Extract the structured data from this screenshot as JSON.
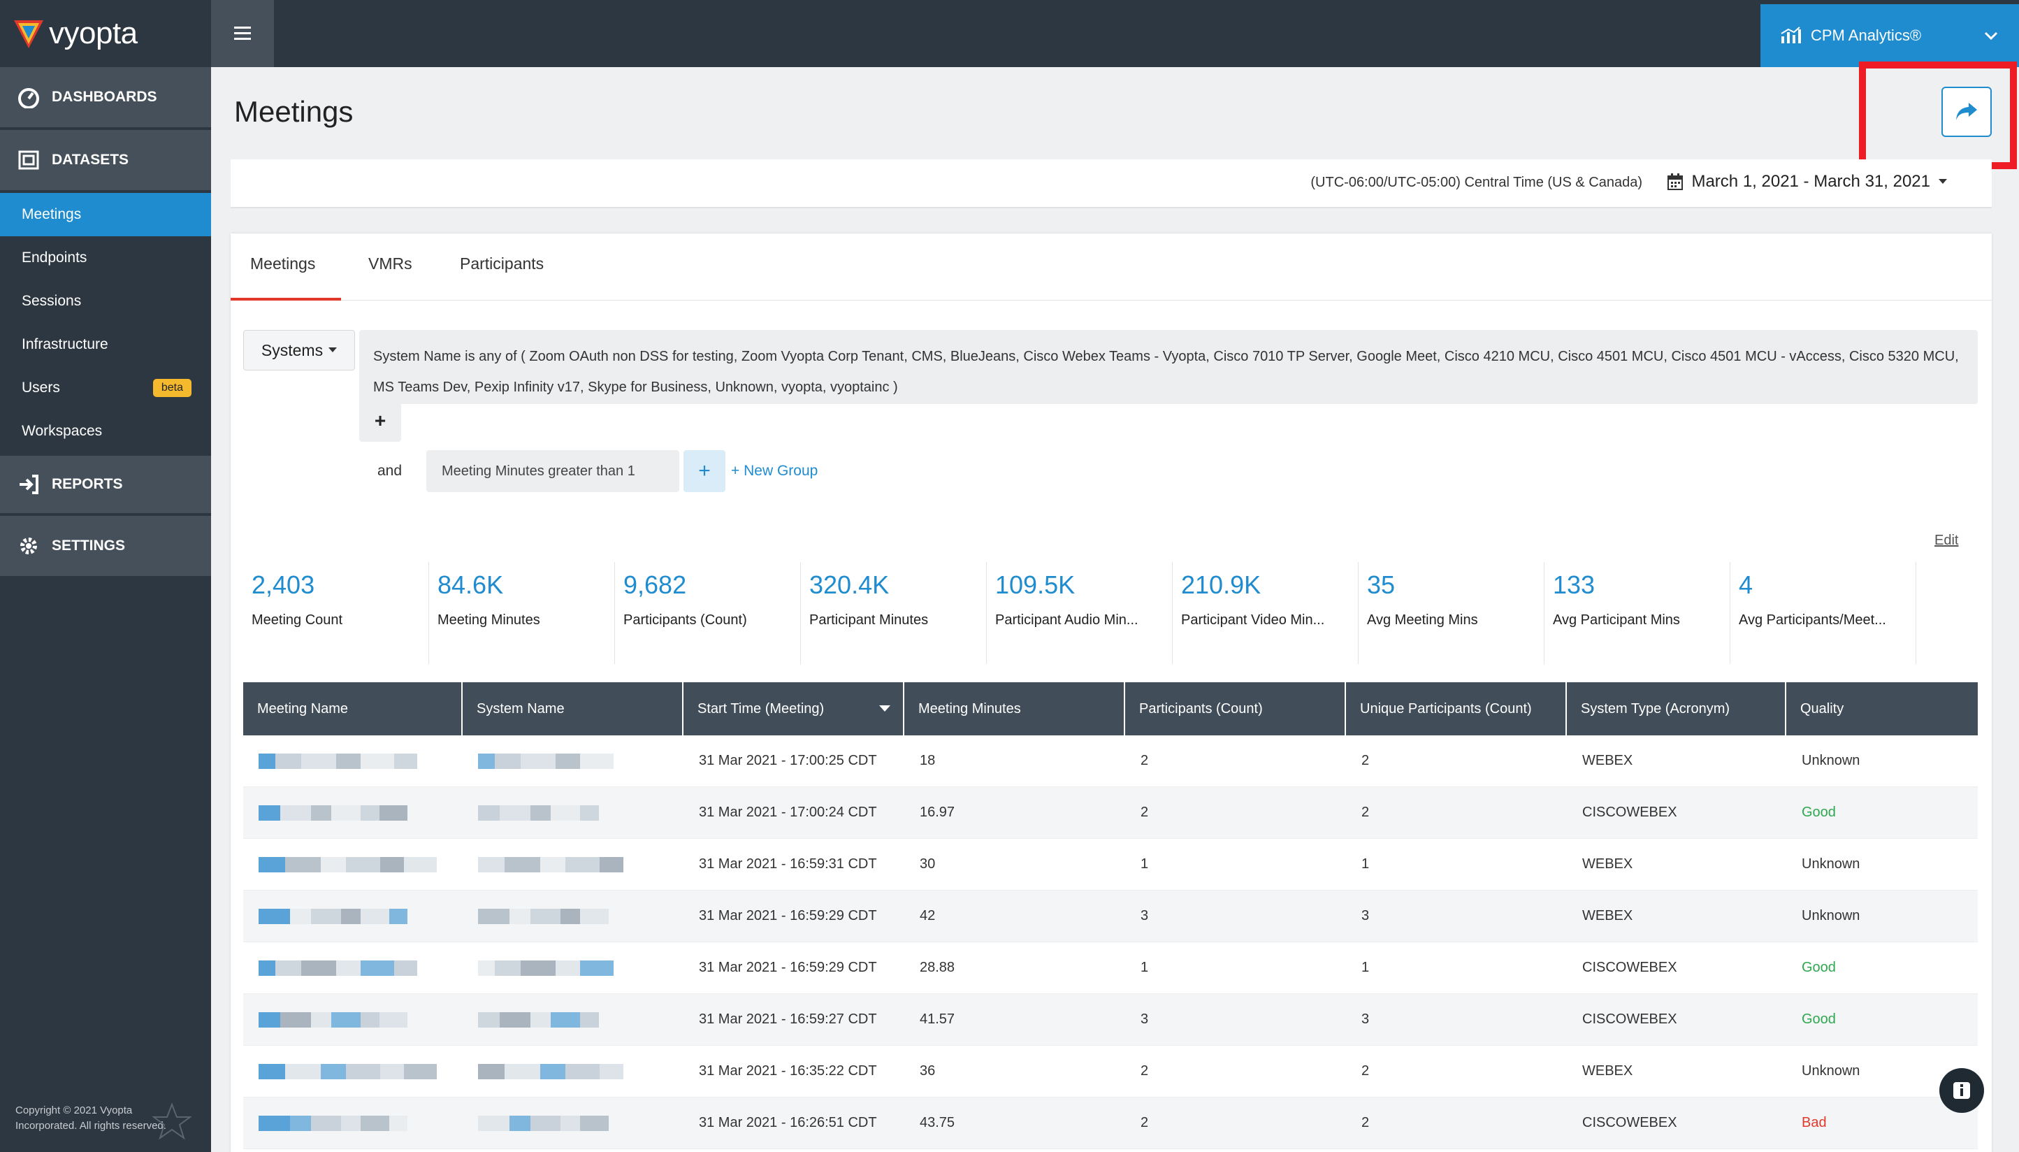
{
  "brand": {
    "name": "vyopta"
  },
  "sidebar": {
    "sections": [
      {
        "label": "DASHBOARDS"
      },
      {
        "label": "DATASETS"
      },
      {
        "label": "REPORTS"
      },
      {
        "label": "SETTINGS"
      }
    ],
    "dataset_items": [
      {
        "label": "Meetings"
      },
      {
        "label": "Endpoints"
      },
      {
        "label": "Sessions"
      },
      {
        "label": "Infrastructure"
      },
      {
        "label": "Users",
        "badge": "beta"
      },
      {
        "label": "Workspaces"
      }
    ],
    "copyright": "Copyright © 2021 Vyopta Incorporated. All rights reserved."
  },
  "topbar": {
    "product_label": "CPM Analytics®"
  },
  "page": {
    "title": "Meetings",
    "timezone": "(UTC-06:00/UTC-05:00) Central Time (US & Canada)",
    "date_range": "March 1, 2021 - March 31, 2021"
  },
  "tabs": [
    {
      "label": "Meetings"
    },
    {
      "label": "VMRs"
    },
    {
      "label": "Participants"
    }
  ],
  "filters": {
    "systems_label": "Systems",
    "condition_text": "System Name is any of ( Zoom OAuth non DSS for testing, Zoom Vyopta Corp Tenant, CMS, BlueJeans, Cisco Webex Teams - Vyopta, Cisco 7010 TP Server, Google Meet, Cisco 4210 MCU, Cisco 4501 MCU, Cisco 4501 MCU - vAccess, Cisco 5320 MCU, MS Teams Dev, Pexip Infinity v17, Skype for Business, Unknown, vyopta, vyoptainc )",
    "plus": "+",
    "and_label": "and",
    "condition2": "Meeting Minutes greater than 1",
    "new_group": "+ New Group"
  },
  "edit_label": "Edit",
  "kpis": [
    {
      "value": "2,403",
      "label": "Meeting Count"
    },
    {
      "value": "84.6K",
      "label": "Meeting Minutes"
    },
    {
      "value": "9,682",
      "label": "Participants (Count)"
    },
    {
      "value": "320.4K",
      "label": "Participant Minutes"
    },
    {
      "value": "109.5K",
      "label": "Participant Audio Min..."
    },
    {
      "value": "210.9K",
      "label": "Participant Video Min..."
    },
    {
      "value": "35",
      "label": "Avg Meeting Mins"
    },
    {
      "value": "133",
      "label": "Avg Participant Mins"
    },
    {
      "value": "4",
      "label": "Avg Participants/Meet..."
    }
  ],
  "table": {
    "headers": [
      "Meeting Name",
      "System Name",
      "Start Time (Meeting)",
      "Meeting Minutes",
      "Participants (Count)",
      "Unique Participants (Count)",
      "System Type (Acronym)",
      "Quality"
    ],
    "rows": [
      {
        "start": "31 Mar 2021 - 17:00:25 CDT",
        "minutes": "18",
        "participants": "2",
        "unique": "2",
        "type": "WEBEX",
        "quality": "Unknown"
      },
      {
        "start": "31 Mar 2021 - 17:00:24 CDT",
        "minutes": "16.97",
        "participants": "2",
        "unique": "2",
        "type": "CISCOWEBEX",
        "quality": "Good"
      },
      {
        "start": "31 Mar 2021 - 16:59:31 CDT",
        "minutes": "30",
        "participants": "1",
        "unique": "1",
        "type": "WEBEX",
        "quality": "Unknown"
      },
      {
        "start": "31 Mar 2021 - 16:59:29 CDT",
        "minutes": "42",
        "participants": "3",
        "unique": "3",
        "type": "WEBEX",
        "quality": "Unknown"
      },
      {
        "start": "31 Mar 2021 - 16:59:29 CDT",
        "minutes": "28.88",
        "participants": "1",
        "unique": "1",
        "type": "CISCOWEBEX",
        "quality": "Good"
      },
      {
        "start": "31 Mar 2021 - 16:59:27 CDT",
        "minutes": "41.57",
        "participants": "3",
        "unique": "3",
        "type": "CISCOWEBEX",
        "quality": "Good"
      },
      {
        "start": "31 Mar 2021 - 16:35:22 CDT",
        "minutes": "36",
        "participants": "2",
        "unique": "2",
        "type": "WEBEX",
        "quality": "Unknown"
      },
      {
        "start": "31 Mar 2021 - 16:26:51 CDT",
        "minutes": "43.75",
        "participants": "2",
        "unique": "2",
        "type": "CISCOWEBEX",
        "quality": "Bad"
      }
    ]
  },
  "colors": {
    "accent": "#1f8cd0",
    "sidebar": "#2d3741",
    "highlight_box": "#ee1c25",
    "good": "#2fa84f",
    "bad": "#e0392b"
  },
  "icons": [
    "dashboard-icon",
    "datasets-icon",
    "reports-icon",
    "settings-icon",
    "hamburger-icon",
    "chart-icon",
    "chevron-down-icon",
    "share-icon",
    "calendar-icon",
    "sort-desc-icon",
    "info-icon",
    "star-icon"
  ]
}
